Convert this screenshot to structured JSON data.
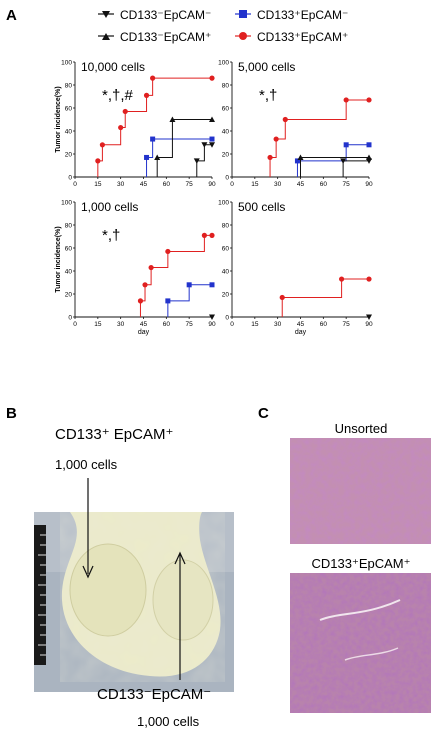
{
  "panels": {
    "a_label": "A",
    "b_label": "B",
    "c_label": "C"
  },
  "legend": {
    "items": [
      {
        "label": "CD133⁻EpCAM⁻",
        "color": "#111111",
        "marker": "triangle-down"
      },
      {
        "label": "CD133⁺EpCAM⁻",
        "color": "#2233cc",
        "marker": "square"
      },
      {
        "label": "CD133⁻EpCAM⁺",
        "color": "#111111",
        "marker": "triangle-up"
      },
      {
        "label": "CD133⁺EpCAM⁺",
        "color": "#e02020",
        "marker": "circle"
      }
    ]
  },
  "colors": {
    "neg_neg": "#111111",
    "pos_neg": "#2233cc",
    "neg_pos": "#111111",
    "pos_pos": "#e02020",
    "tissue": "#c38fb2",
    "mouse_fur": "#ecebc9",
    "photo_bg": "#aab4c0"
  },
  "chart_data": [
    {
      "type": "line",
      "title": "10,000 cells",
      "annotation": "*,†,#",
      "xlabel": "",
      "ylabel": "Tumor incidence(%)",
      "xlim": [
        0,
        90
      ],
      "ylim": [
        0,
        100
      ],
      "xticks": [
        0,
        15,
        30,
        45,
        60,
        75,
        90
      ],
      "yticks": [
        0,
        20,
        40,
        60,
        80,
        100
      ],
      "series": [
        {
          "key": "pos_pos",
          "x": [
            15,
            18,
            30,
            33,
            47,
            51,
            90
          ],
          "y": [
            14,
            28,
            43,
            57,
            71,
            86,
            86
          ]
        },
        {
          "key": "pos_neg",
          "x": [
            47,
            51,
            90
          ],
          "y": [
            17,
            33,
            33
          ]
        },
        {
          "key": "neg_pos",
          "x": [
            54,
            64,
            90
          ],
          "y": [
            17,
            50,
            50
          ]
        },
        {
          "key": "neg_neg",
          "x": [
            80,
            85,
            90
          ],
          "y": [
            14,
            28,
            28
          ]
        }
      ]
    },
    {
      "type": "line",
      "title": "5,000 cells",
      "annotation": "*,†",
      "xlabel": "",
      "ylabel": "",
      "xlim": [
        0,
        90
      ],
      "ylim": [
        0,
        100
      ],
      "xticks": [
        0,
        15,
        30,
        45,
        60,
        75,
        90
      ],
      "yticks": [
        0,
        20,
        40,
        60,
        80,
        100
      ],
      "series": [
        {
          "key": "pos_pos",
          "x": [
            25,
            29,
            35,
            75,
            90
          ],
          "y": [
            17,
            33,
            50,
            67,
            67
          ]
        },
        {
          "key": "pos_neg",
          "x": [
            43,
            75,
            90
          ],
          "y": [
            14,
            28,
            28
          ]
        },
        {
          "key": "neg_pos",
          "x": [
            45,
            90
          ],
          "y": [
            17,
            17
          ]
        },
        {
          "key": "neg_neg",
          "x": [
            73,
            90
          ],
          "y": [
            14,
            14
          ]
        }
      ]
    },
    {
      "type": "line",
      "title": "1,000 cells",
      "annotation": "*,†",
      "xlabel": "day",
      "ylabel": "Tumor incidence(%)",
      "xlim": [
        0,
        90
      ],
      "ylim": [
        0,
        100
      ],
      "xticks": [
        0,
        15,
        30,
        45,
        60,
        75,
        90
      ],
      "yticks": [
        0,
        20,
        40,
        60,
        80,
        100
      ],
      "series": [
        {
          "key": "pos_pos",
          "x": [
            43,
            46,
            50,
            61,
            85,
            90
          ],
          "y": [
            14,
            28,
            43,
            57,
            71,
            71
          ]
        },
        {
          "key": "pos_neg",
          "x": [
            61,
            75,
            90
          ],
          "y": [
            14,
            28,
            28
          ]
        },
        {
          "key": "neg_neg",
          "x": [
            90
          ],
          "y": [
            0
          ]
        }
      ]
    },
    {
      "type": "line",
      "title": "500 cells",
      "annotation": "",
      "xlabel": "day",
      "ylabel": "",
      "xlim": [
        0,
        90
      ],
      "ylim": [
        0,
        100
      ],
      "xticks": [
        0,
        15,
        30,
        45,
        60,
        75,
        90
      ],
      "yticks": [
        0,
        20,
        40,
        60,
        80,
        100
      ],
      "series": [
        {
          "key": "pos_pos",
          "x": [
            33,
            72,
            90
          ],
          "y": [
            17,
            33,
            33
          ]
        },
        {
          "key": "neg_neg",
          "x": [
            90
          ],
          "y": [
            0
          ]
        }
      ]
    }
  ],
  "photo_b": {
    "top_label": "CD133⁺ EpCAM⁺",
    "top_count": "1,000 cells",
    "bottom_label": "CD133⁻EpCAM⁻",
    "bottom_count": "1,000 cells"
  },
  "photo_c": {
    "top_label": "Unsorted",
    "bottom_label": "CD133⁺EpCAM⁺"
  }
}
